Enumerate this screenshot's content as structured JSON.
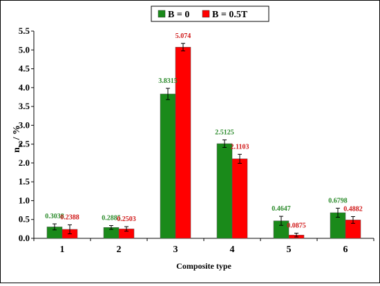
{
  "chart_data": {
    "type": "bar",
    "title": "",
    "xlabel": "Composite type",
    "ylabel_main": "n",
    "ylabel_sub": "w",
    "ylabel_rest": " / %",
    "categories": [
      "1",
      "2",
      "3",
      "4",
      "5",
      "6"
    ],
    "ylim": [
      0,
      5.5
    ],
    "yticks": [
      "0.0",
      "0.5",
      "1.0",
      "1.5",
      "2.0",
      "2.5",
      "3.0",
      "3.5",
      "4.0",
      "4.5",
      "5.0",
      "5.5"
    ],
    "legend_position": "top-center",
    "grid": false,
    "series": [
      {
        "name": "B = 0",
        "color": "#1a8a1a",
        "label_color": "#2a8a2a",
        "values": [
          0.3038,
          0.2885,
          3.8315,
          2.5125,
          0.4647,
          0.6798
        ],
        "labels": [
          "0.3038",
          "0.2885",
          "3.8315",
          "2.5125",
          "0.4647",
          "0.6798"
        ],
        "errors": [
          0.08,
          0.05,
          0.15,
          0.1,
          0.12,
          0.12
        ]
      },
      {
        "name": "B = 0.5T",
        "color": "#ff0000",
        "label_color": "#d01818",
        "values": [
          0.2388,
          0.2503,
          5.074,
          2.1103,
          0.0875,
          0.4882
        ],
        "labels": [
          "0.2388",
          "0.2503",
          "5.074",
          "2.1103",
          "0.0875",
          "0.4882"
        ],
        "errors": [
          0.12,
          0.06,
          0.1,
          0.12,
          0.05,
          0.09
        ]
      }
    ]
  }
}
